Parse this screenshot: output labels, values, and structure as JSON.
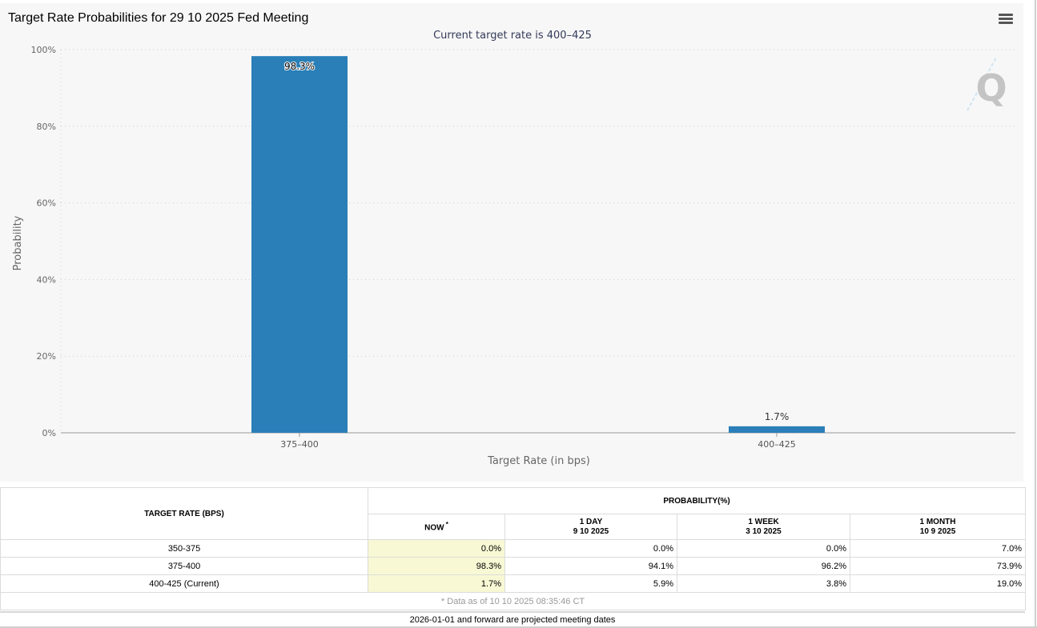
{
  "chart_data": {
    "type": "bar",
    "title": "Target Rate Probabilities for 29 10 2025 Fed Meeting",
    "subtitle": "Current target rate is 400–425",
    "xlabel": "Target Rate (in bps)",
    "ylabel": "Probability",
    "categories": [
      "375–400",
      "400–425"
    ],
    "values": [
      98.3,
      1.7
    ],
    "data_labels": [
      "98.3%",
      "1.7%"
    ],
    "ylim": [
      0,
      100
    ],
    "yticks": [
      "0%",
      "20%",
      "40%",
      "60%",
      "80%",
      "100%"
    ],
    "grid": true,
    "legend": "none",
    "colors": {
      "bar": "#2a7fb8",
      "grid": "#cccccc",
      "axis": "#999999"
    }
  },
  "table": {
    "col_target": "TARGET RATE (BPS)",
    "col_prob": "PROBABILITY(%)",
    "col_now": "NOW",
    "col_now_mark": "*",
    "col_1day": "1 DAY",
    "col_1day_date": "9 10 2025",
    "col_1week": "1 WEEK",
    "col_1week_date": "3 10 2025",
    "col_1month": "1 MONTH",
    "col_1month_date": "10 9 2025",
    "rows": [
      {
        "rate": "350-375",
        "now": "0.0%",
        "day": "0.0%",
        "week": "0.0%",
        "month": "7.0%"
      },
      {
        "rate": "375-400",
        "now": "98.3%",
        "day": "94.1%",
        "week": "96.2%",
        "month": "73.9%"
      },
      {
        "rate": "400-425 (Current)",
        "now": "1.7%",
        "day": "5.9%",
        "week": "3.8%",
        "month": "19.0%"
      }
    ],
    "footnote": "* Data as of 10 10 2025 08:35:46 CT"
  },
  "projected_note": "2026-01-01 and forward are projected meeting dates",
  "icons": {
    "menu": "hamburger-menu-icon",
    "watermark": "q-logo-watermark"
  }
}
